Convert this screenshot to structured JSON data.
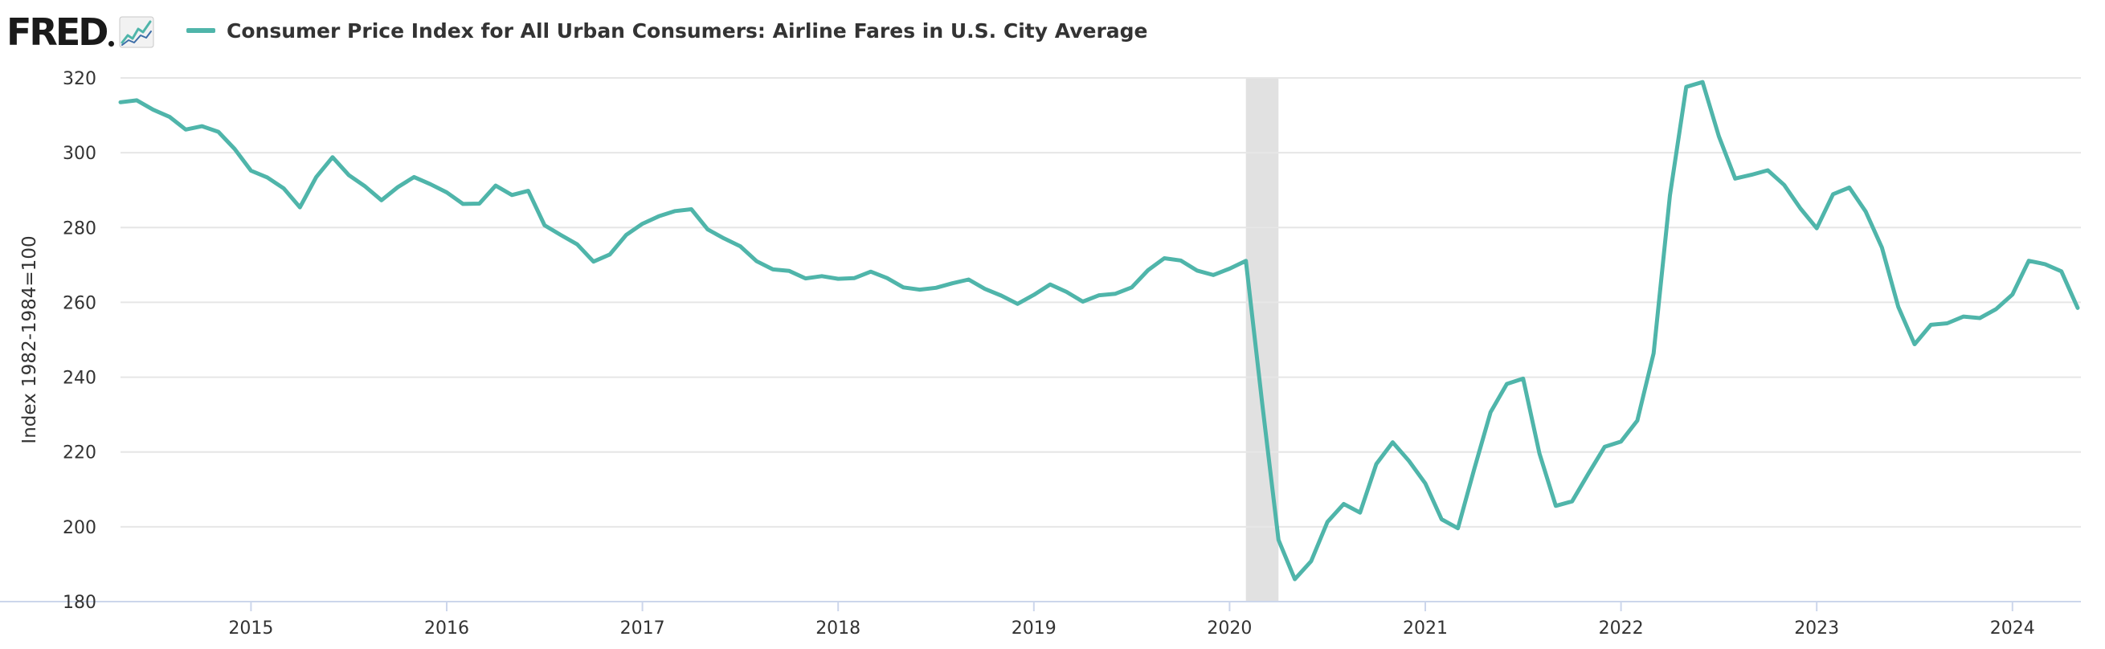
{
  "app": {
    "logo_text": "FRED",
    "logo_icon": "fred-line-graph-icon"
  },
  "colors": {
    "series": "#4fb5aa",
    "recession": "#e1e1e1",
    "grid": "#e6e6e6",
    "axis": "#ccd6eb"
  },
  "chart_data": {
    "type": "line",
    "title": "",
    "xlabel": "",
    "ylabel": "Index 1982-1984=100",
    "ylim": [
      180,
      320
    ],
    "yticks": [
      180,
      200,
      220,
      240,
      260,
      280,
      300,
      320
    ],
    "xticks": [
      "2015",
      "2016",
      "2017",
      "2018",
      "2019",
      "2020",
      "2021",
      "2022",
      "2023",
      "2024"
    ],
    "x_start": "2014-05",
    "grid": true,
    "legend": "top-left",
    "recessions": [
      {
        "start": "2020-02",
        "end": "2020-04"
      }
    ],
    "series": [
      {
        "name": "Consumer Price Index for All Urban Consumers: Airline Fares in U.S. City Average",
        "x": [
          "2014-05",
          "2014-06",
          "2014-07",
          "2014-08",
          "2014-09",
          "2014-10",
          "2014-11",
          "2014-12",
          "2015-01",
          "2015-02",
          "2015-03",
          "2015-04",
          "2015-05",
          "2015-06",
          "2015-07",
          "2015-08",
          "2015-09",
          "2015-10",
          "2015-11",
          "2015-12",
          "2016-01",
          "2016-02",
          "2016-03",
          "2016-04",
          "2016-05",
          "2016-06",
          "2016-07",
          "2016-08",
          "2016-09",
          "2016-10",
          "2016-11",
          "2016-12",
          "2017-01",
          "2017-02",
          "2017-03",
          "2017-04",
          "2017-05",
          "2017-06",
          "2017-07",
          "2017-08",
          "2017-09",
          "2017-10",
          "2017-11",
          "2017-12",
          "2018-01",
          "2018-02",
          "2018-03",
          "2018-04",
          "2018-05",
          "2018-06",
          "2018-07",
          "2018-08",
          "2018-09",
          "2018-10",
          "2018-11",
          "2018-12",
          "2019-01",
          "2019-02",
          "2019-03",
          "2019-04",
          "2019-05",
          "2019-06",
          "2019-07",
          "2019-08",
          "2019-09",
          "2019-10",
          "2019-11",
          "2019-12",
          "2020-01",
          "2020-02",
          "2020-03",
          "2020-04",
          "2020-05",
          "2020-06",
          "2020-07",
          "2020-08",
          "2020-09",
          "2020-10",
          "2020-11",
          "2020-12",
          "2021-01",
          "2021-02",
          "2021-03",
          "2021-04",
          "2021-05",
          "2021-06",
          "2021-07",
          "2021-08",
          "2021-09",
          "2021-10",
          "2021-11",
          "2021-12",
          "2022-01",
          "2022-02",
          "2022-03",
          "2022-04",
          "2022-05",
          "2022-06",
          "2022-07",
          "2022-08",
          "2022-09",
          "2022-10",
          "2022-11",
          "2022-12",
          "2023-01",
          "2023-02",
          "2023-03",
          "2023-04",
          "2023-05",
          "2023-06",
          "2023-07",
          "2023-08",
          "2023-09",
          "2023-10",
          "2023-11",
          "2023-12",
          "2024-01",
          "2024-02",
          "2024-03",
          "2024-04",
          "2024-05"
        ],
        "values": [
          313.5,
          314.0,
          311.5,
          309.6,
          306.2,
          307.1,
          305.6,
          301.0,
          295.2,
          293.4,
          290.5,
          285.4,
          293.5,
          298.8,
          294.0,
          291.0,
          287.3,
          290.8,
          293.5,
          291.6,
          289.4,
          286.3,
          286.4,
          291.2,
          288.7,
          289.8,
          280.6,
          278.0,
          275.5,
          270.9,
          272.8,
          278.0,
          281.0,
          283.0,
          284.4,
          284.9,
          279.5,
          277.1,
          275.0,
          271.0,
          268.8,
          268.4,
          266.4,
          267.0,
          266.3,
          266.5,
          268.2,
          266.5,
          264.0,
          263.4,
          263.9,
          265.1,
          266.1,
          263.6,
          261.8,
          259.6,
          262.0,
          264.8,
          262.8,
          260.2,
          261.9,
          262.3,
          264.0,
          268.6,
          271.8,
          271.2,
          268.5,
          267.3,
          269.0,
          271.1,
          233.0,
          196.5,
          186.0,
          190.8,
          201.3,
          206.1,
          203.8,
          216.8,
          222.6,
          217.6,
          211.6,
          202.0,
          199.6,
          215.4,
          230.6,
          238.2,
          239.6,
          219.6,
          205.6,
          206.8,
          214.2,
          221.4,
          222.8,
          228.4,
          246.4,
          288.6,
          317.6,
          318.9,
          304.4,
          293.1,
          294.1,
          295.3,
          291.4,
          285.1,
          279.8,
          288.9,
          290.7,
          284.3,
          274.6,
          258.8,
          248.8,
          254.0,
          254.4,
          256.2,
          255.8,
          258.2,
          262.1,
          271.1,
          270.2,
          268.3,
          258.5
        ]
      }
    ]
  }
}
